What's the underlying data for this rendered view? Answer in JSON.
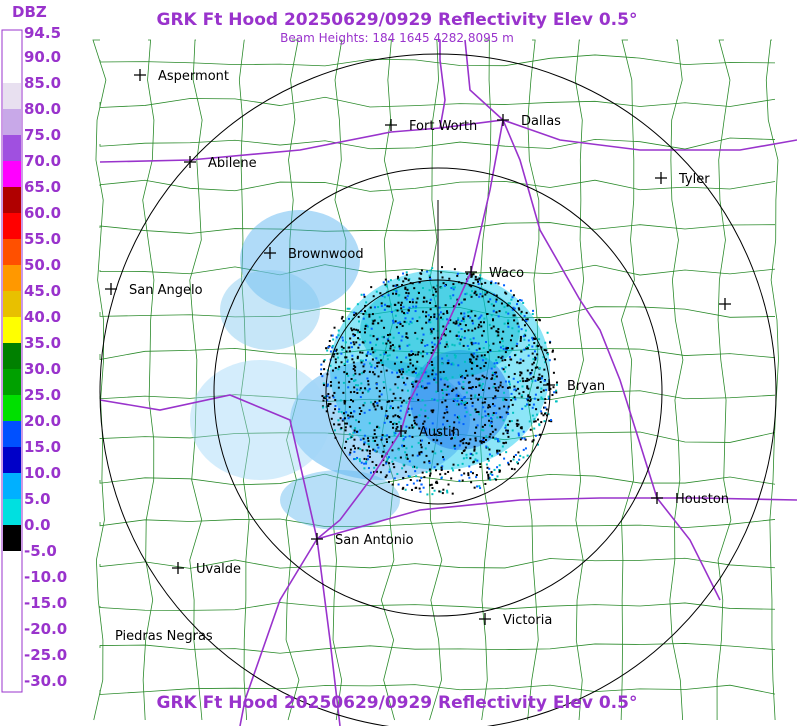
{
  "header": {
    "title": "GRK Ft Hood 20250629/0929 Reflectivity Elev 0.5°",
    "subtitle": "Beam Heights: 184 1645 4282 8095 m"
  },
  "legend": {
    "unit": "DBZ",
    "labels": [
      "94.5",
      "90.0",
      "85.0",
      "80.0",
      "75.0",
      "70.0",
      "65.0",
      "60.0",
      "55.0",
      "50.0",
      "45.0",
      "40.0",
      "35.0",
      "30.0",
      "25.0",
      "20.0",
      "15.0",
      "10.0",
      "5.0",
      "0.0",
      "-5.0",
      "-10.0",
      "-15.0",
      "-20.0",
      "-25.0",
      "-30.0"
    ],
    "colors": [
      "#ffffff",
      "#ffffff",
      "#e8e0f0",
      "#c8a8e8",
      "#a050e0",
      "#ff00ff",
      "#b00000",
      "#ff0000",
      "#ff5000",
      "#ff9800",
      "#e8c000",
      "#ffff00",
      "#008000",
      "#00a000",
      "#00e000",
      "#0050ff",
      "#0000c8",
      "#00b0ff",
      "#00e0e0",
      "#000000",
      "#ffffff",
      "#ffffff",
      "#ffffff",
      "#ffffff",
      "#ffffff"
    ]
  },
  "cities": [
    {
      "label": "Aspermont"
    },
    {
      "label": "Abilene"
    },
    {
      "label": "Fort Worth"
    },
    {
      "label": "Dallas"
    },
    {
      "label": "Tyler"
    },
    {
      "label": "Brownwood"
    },
    {
      "label": "Waco"
    },
    {
      "label": "San Angelo"
    },
    {
      "label": "Bryan"
    },
    {
      "label": "Austin"
    },
    {
      "label": "Houston"
    },
    {
      "label": "San Antonio"
    },
    {
      "label": "Uvalde"
    },
    {
      "label": "Victoria"
    },
    {
      "label": "Piedras Negras"
    }
  ],
  "footer": {
    "title": "GRK Ft Hood 20250629/0929 Reflectivity Elev 0.5°"
  }
}
